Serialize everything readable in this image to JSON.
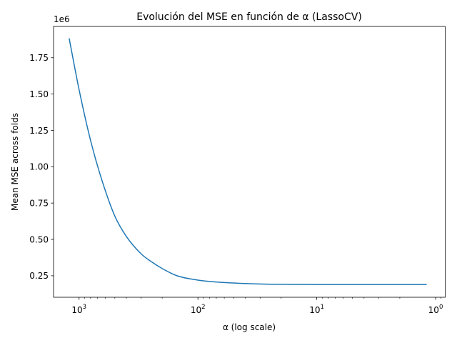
{
  "chart_data": {
    "type": "line",
    "title": "Evolución del MSE en función de α (LassoCV)",
    "xlabel": "α (log scale)",
    "ylabel": "Mean MSE across folds",
    "y_offset_label": "1e6",
    "x_scale": "log",
    "x_inverted": true,
    "xlim": [
      1640,
      0.83
    ],
    "ylim": [
      102000,
      1965000
    ],
    "x_ticks": [
      {
        "value": 1000,
        "base": "10",
        "exp": "3"
      },
      {
        "value": 100,
        "base": "10",
        "exp": "2"
      },
      {
        "value": 10,
        "base": "10",
        "exp": "1"
      },
      {
        "value": 1,
        "base": "10",
        "exp": "0"
      }
    ],
    "y_ticks": [
      {
        "value": 250000,
        "label": "0.25"
      },
      {
        "value": 500000,
        "label": "0.50"
      },
      {
        "value": 750000,
        "label": "0.75"
      },
      {
        "value": 1000000,
        "label": "1.00"
      },
      {
        "value": 1250000,
        "label": "1.25"
      },
      {
        "value": 1500000,
        "label": "1.50"
      },
      {
        "value": 1750000,
        "label": "1.75"
      }
    ],
    "grid": false,
    "legend": "none",
    "series": [
      {
        "color": "#1f77b4",
        "x": [
          1210,
          1000,
          800,
          650,
          500,
          400,
          300,
          250,
          200,
          150,
          100,
          70,
          50,
          35,
          25,
          20,
          15,
          10,
          5,
          3,
          2,
          1.2
        ],
        "y": [
          1880000,
          1530000,
          1180000,
          920000,
          660000,
          520000,
          400000,
          350000,
          300000,
          250000,
          220000,
          207000,
          200000,
          195000,
          192000,
          191000,
          190500,
          190000,
          190000,
          190000,
          190000,
          190000
        ]
      }
    ]
  }
}
